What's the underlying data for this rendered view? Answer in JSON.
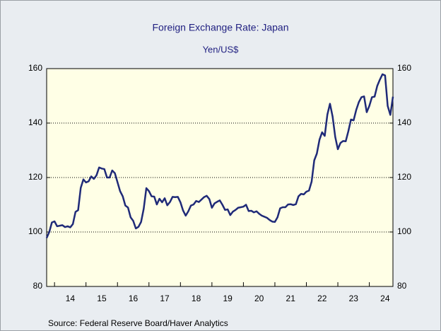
{
  "chart_data": {
    "type": "line",
    "title": "Foreign Exchange Rate: Japan",
    "subtitle": "Yen/US$",
    "source": "Source:  Federal Reserve Board/Haver Analytics",
    "x": [
      2013.75,
      2013.833,
      2013.917,
      2014,
      2014.083,
      2014.167,
      2014.25,
      2014.333,
      2014.417,
      2014.5,
      2014.583,
      2014.667,
      2014.75,
      2014.833,
      2014.917,
      2015,
      2015.083,
      2015.167,
      2015.25,
      2015.333,
      2015.417,
      2015.5,
      2015.583,
      2015.667,
      2015.75,
      2015.833,
      2015.917,
      2016,
      2016.083,
      2016.167,
      2016.25,
      2016.333,
      2016.417,
      2016.5,
      2016.583,
      2016.667,
      2016.75,
      2016.833,
      2016.917,
      2017,
      2017.083,
      2017.167,
      2017.25,
      2017.333,
      2017.417,
      2017.5,
      2017.583,
      2017.667,
      2017.75,
      2017.833,
      2017.917,
      2018,
      2018.083,
      2018.167,
      2018.25,
      2018.333,
      2018.417,
      2018.5,
      2018.583,
      2018.667,
      2018.75,
      2018.833,
      2018.917,
      2019,
      2019.083,
      2019.167,
      2019.25,
      2019.333,
      2019.417,
      2019.5,
      2019.583,
      2019.667,
      2019.75,
      2019.833,
      2019.917,
      2020,
      2020.083,
      2020.167,
      2020.25,
      2020.333,
      2020.417,
      2020.5,
      2020.583,
      2020.667,
      2020.75,
      2020.833,
      2020.917,
      2021,
      2021.083,
      2021.167,
      2021.25,
      2021.333,
      2021.417,
      2021.5,
      2021.583,
      2021.667,
      2021.75,
      2021.833,
      2021.917,
      2022,
      2022.083,
      2022.167,
      2022.25,
      2022.333,
      2022.417,
      2022.5,
      2022.583,
      2022.667,
      2022.75,
      2022.833,
      2022.917,
      2023,
      2023.083,
      2023.167,
      2023.25,
      2023.333,
      2023.417,
      2023.5,
      2023.583,
      2023.667,
      2023.75,
      2023.833,
      2023.917,
      2024,
      2024.083,
      2024.167,
      2024.25,
      2024.333,
      2024.417,
      2024.5,
      2024.583,
      2024.667,
      2024.75
    ],
    "series": [
      {
        "color": "#1f2a78",
        "values": [
          97.8,
          100.0,
          103.5,
          103.9,
          102.1,
          102.3,
          102.5,
          101.8,
          102.1,
          101.7,
          102.9,
          107.4,
          108.0,
          116.2,
          119.3,
          118.2,
          118.6,
          120.4,
          119.5,
          120.8,
          123.7,
          123.3,
          123.1,
          120.0,
          120.0,
          122.6,
          121.6,
          118.3,
          115.0,
          113.1,
          109.7,
          109.0,
          105.4,
          104.1,
          101.3,
          101.9,
          103.7,
          108.5,
          116.1,
          115.0,
          113.1,
          113.0,
          110.1,
          112.2,
          110.9,
          112.4,
          109.8,
          111.0,
          112.9,
          112.8,
          112.9,
          110.9,
          107.9,
          106.0,
          107.6,
          109.7,
          110.1,
          111.4,
          111.0,
          111.9,
          112.8,
          113.3,
          112.1,
          108.9,
          110.5,
          111.1,
          111.6,
          110.0,
          108.1,
          108.3,
          106.2,
          107.5,
          108.1,
          108.9,
          109.1,
          109.3,
          110.0,
          107.7,
          107.8,
          107.2,
          107.6,
          106.7,
          106.0,
          105.6,
          105.2,
          104.4,
          103.8,
          103.7,
          105.4,
          108.7,
          109.1,
          109.1,
          110.1,
          110.2,
          109.9,
          110.2,
          113.1,
          114.0,
          113.8,
          114.8,
          115.2,
          118.5,
          126.3,
          128.8,
          133.9,
          136.6,
          135.3,
          143.1,
          147.1,
          142.4,
          134.9,
          130.4,
          132.7,
          133.4,
          133.3,
          137.0,
          141.3,
          141.0,
          144.8,
          147.7,
          149.5,
          149.8,
          144.0,
          146.3,
          149.5,
          149.7,
          153.6,
          155.9,
          157.9,
          157.5,
          146.3,
          143.0,
          149.7
        ]
      }
    ],
    "xlim": [
      2013.75,
      2024.75
    ],
    "xticks": [
      {
        "value": 2014.5,
        "label": "14"
      },
      {
        "value": 2015.5,
        "label": "15"
      },
      {
        "value": 2016.5,
        "label": "16"
      },
      {
        "value": 2017.5,
        "label": "17"
      },
      {
        "value": 2018.5,
        "label": "18"
      },
      {
        "value": 2019.5,
        "label": "19"
      },
      {
        "value": 2020.5,
        "label": "20"
      },
      {
        "value": 2021.5,
        "label": "21"
      },
      {
        "value": 2022.5,
        "label": "22"
      },
      {
        "value": 2023.5,
        "label": "23"
      },
      {
        "value": 2024.5,
        "label": "24"
      }
    ],
    "ylim": [
      80,
      160
    ],
    "yticks": [
      80,
      100,
      120,
      140,
      160
    ],
    "y2lim": [
      80,
      160
    ],
    "y2ticks": [
      80,
      100,
      120,
      140,
      160
    ],
    "grid": true
  }
}
